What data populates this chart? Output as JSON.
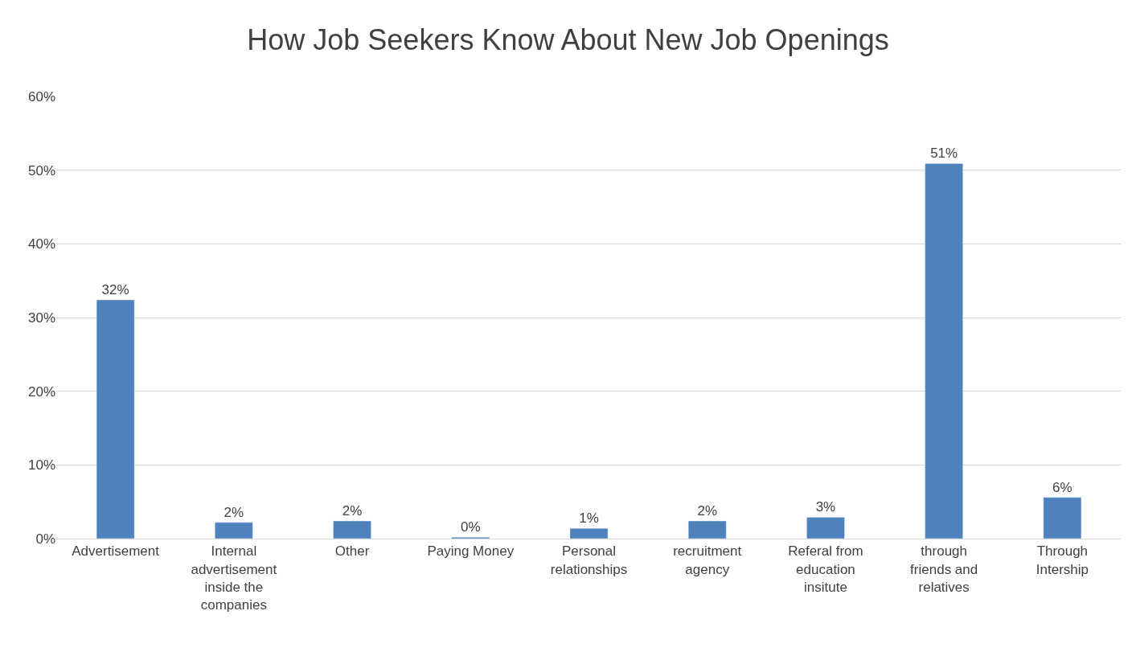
{
  "chart_data": {
    "type": "bar",
    "title": "How Job Seekers Know About New Job Openings",
    "categories": [
      "Advertisement",
      "Internal advertisement inside the companies",
      "Other",
      "Paying Money",
      "Personal relationships",
      "recruitment agency",
      "Referal from education insitute",
      "through friends and relatives",
      "Through Intership"
    ],
    "values": [
      32.4,
      2.2,
      2.4,
      0.2,
      1.4,
      2.4,
      2.9,
      50.9,
      5.6
    ],
    "value_labels": [
      "32%",
      "2%",
      "2%",
      "0%",
      "1%",
      "2%",
      "3%",
      "51%",
      "6%"
    ],
    "color": "#4f81bd",
    "ylim": [
      0,
      60
    ],
    "yticks": [
      {
        "value": 0,
        "label": "0%"
      },
      {
        "value": 10,
        "label": "10%"
      },
      {
        "value": 20,
        "label": "20%"
      },
      {
        "value": 30,
        "label": "30%"
      },
      {
        "value": 40,
        "label": "40%"
      },
      {
        "value": 50,
        "label": "50%"
      },
      {
        "value": 60,
        "label": "60%"
      }
    ],
    "grid": "y"
  }
}
